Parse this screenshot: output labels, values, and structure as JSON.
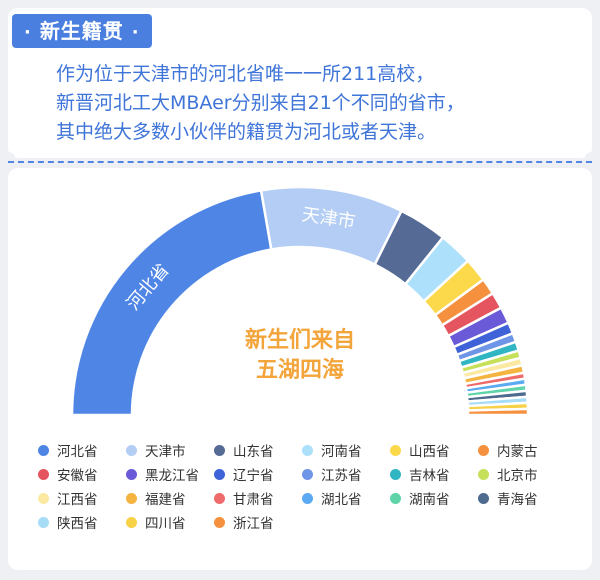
{
  "header": {
    "badge_dot_left": "·",
    "badge_title": "新生籍贯",
    "badge_dot_right": "·"
  },
  "intro_lines": [
    "作为位于天津市的河北省唯一一所211高校，",
    "新晋河北工大MBAer分别来自21个不同的省市，",
    "其中绝大多数小伙伴的籍贯为河北或者天津。"
  ],
  "center_text": [
    "新生们来自",
    "五湖四海"
  ],
  "chart_data": {
    "type": "pie",
    "variant": "half-donut",
    "labels_in_slices": [
      "河北省",
      "天津市"
    ],
    "categories": [
      "河北省",
      "天津市",
      "山东省",
      "河南省",
      "山西省",
      "内蒙古",
      "安徽省",
      "黑龙江省",
      "辽宁省",
      "江苏省",
      "吉林省",
      "北京市",
      "江西省",
      "福建省",
      "甘肃省",
      "湖北省",
      "湖南省",
      "青海省",
      "陕西省",
      "四川省",
      "浙江省"
    ],
    "values": [
      42,
      19,
      6.5,
      4.5,
      3.2,
      2.2,
      2.2,
      2.2,
      1.5,
      1.2,
      1.2,
      1.0,
      1.0,
      1.0,
      0.8,
      0.8,
      0.8,
      0.8,
      0.8,
      0.8,
      0.8
    ],
    "colors": [
      "#4f86e6",
      "#b3cdf5",
      "#566a96",
      "#ace0fb",
      "#fbd94b",
      "#f5913e",
      "#e5555f",
      "#6b5ad8",
      "#3e63d8",
      "#6f95e6",
      "#2fb6c2",
      "#c6e05a",
      "#fbe9a2",
      "#f5b340",
      "#ef6b6b",
      "#5aa9f2",
      "#5fd4a9",
      "#4e6a8f",
      "#a7dcf7",
      "#f7d246",
      "#f5913e"
    ]
  }
}
